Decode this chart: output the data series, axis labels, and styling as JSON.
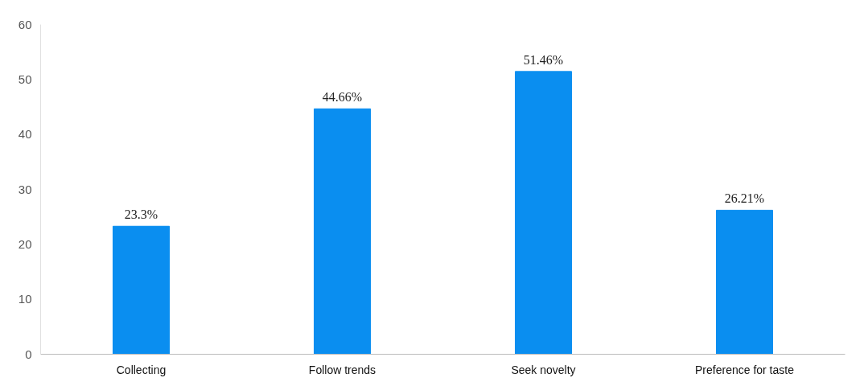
{
  "chart_data": {
    "type": "bar",
    "categories": [
      "Collecting",
      "Follow trends",
      "Seek novelty",
      "Preference for taste"
    ],
    "values": [
      23.3,
      44.66,
      51.46,
      26.21
    ],
    "value_labels": [
      "23.3%",
      "44.66%",
      "51.46%",
      "26.21%"
    ],
    "color": "#0a8ef0",
    "ylim": [
      0,
      60
    ],
    "yticks": [
      0,
      10,
      20,
      30,
      40,
      50,
      60
    ],
    "grid": false
  }
}
